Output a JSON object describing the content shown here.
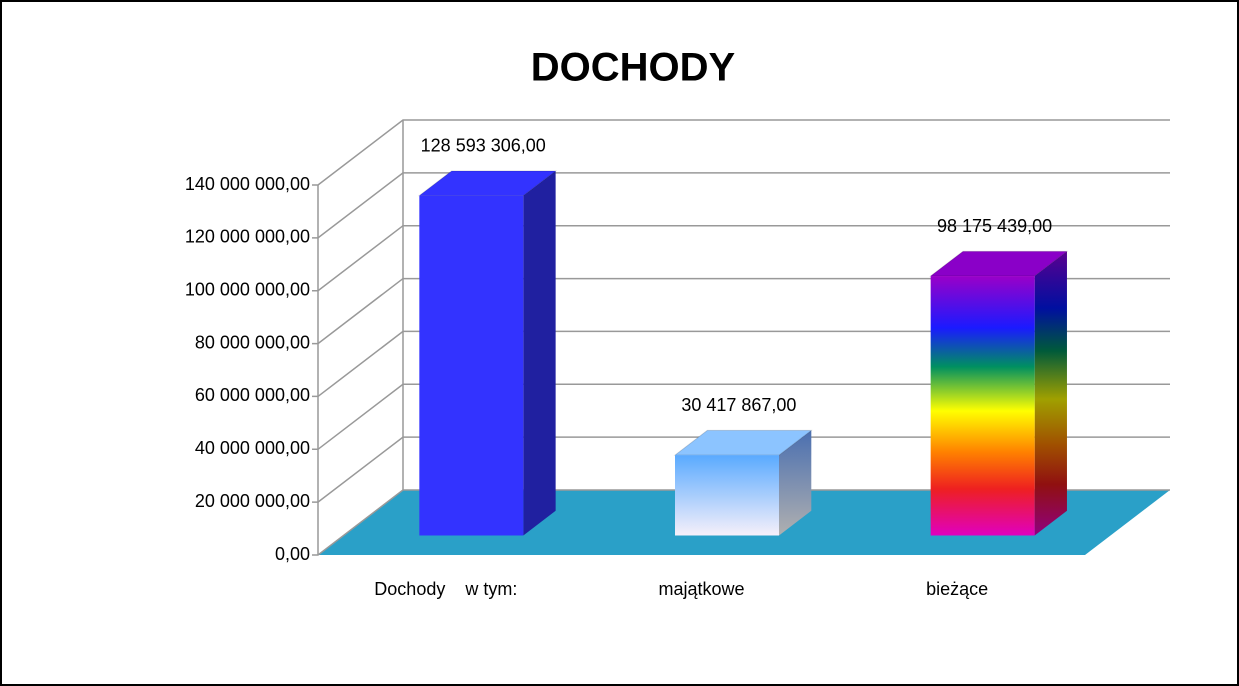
{
  "chart_data": {
    "type": "bar3d",
    "title": "DOCHODY",
    "categories": [
      "Dochody    w tym:",
      "majątkowe",
      "bieżące"
    ],
    "values": [
      128593306,
      30417867,
      98175439
    ],
    "value_labels": [
      "128 593 306,00",
      "30 417 867,00",
      "98 175 439,00"
    ],
    "colors": [
      "#3333ff",
      "#8cc4ff",
      "#8a00c8"
    ],
    "floor_color": "#2aa0c8",
    "ylim": [
      0,
      140000000
    ],
    "yticks": [
      {
        "value": 0,
        "label": "0,00"
      },
      {
        "value": 20000000,
        "label": "20 000 000,00"
      },
      {
        "value": 40000000,
        "label": "40 000 000,00"
      },
      {
        "value": 60000000,
        "label": "60 000 000,00"
      },
      {
        "value": 80000000,
        "label": "80 000 000,00"
      },
      {
        "value": 100000000,
        "label": "100 000 000,00"
      },
      {
        "value": 120000000,
        "label": "120 000 000,00"
      },
      {
        "value": 140000000,
        "label": "140 000 000,00"
      }
    ],
    "grid": true
  }
}
